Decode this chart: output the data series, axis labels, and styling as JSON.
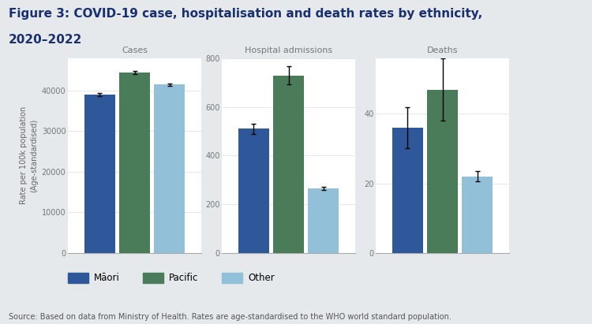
{
  "title_line1": "Figure 3: COVID-19 case, hospitalisation and death rates by ethnicity,",
  "title_line2": "2020–2022",
  "title_fontsize": 11,
  "source_text": "Source: Based on data from Ministry of Health. Rates are age-standardised to the WHO world standard population.",
  "source_fontsize": 7,
  "ylabel": "Rate per 100k population\n(Age-standardised)",
  "ylabel_fontsize": 7,
  "groups": [
    "Cases",
    "Hospital admissions",
    "Deaths"
  ],
  "ethnicities": [
    "Māori",
    "Pacific",
    "Other"
  ],
  "values": {
    "Cases": [
      39000,
      44500,
      41500
    ],
    "Hospital admissions": [
      510,
      730,
      265
    ],
    "Deaths": [
      36,
      47,
      22
    ]
  },
  "errors": {
    "Cases": [
      400,
      300,
      250
    ],
    "Hospital admissions": [
      22,
      38,
      7
    ],
    "Deaths": [
      6,
      9,
      1.5
    ]
  },
  "bar_colors": [
    "#2e5899",
    "#4a7c59",
    "#93c0d9"
  ],
  "background_color": "#e5e9ec",
  "plot_bg_color": "#ffffff",
  "title_color": "#1a2f6e",
  "tick_label_color": "#777777",
  "subtitle_color": "#777777",
  "source_color": "#555555",
  "ylims": {
    "Cases": [
      0,
      48000
    ],
    "Hospital admissions": [
      0,
      800
    ],
    "Deaths": [
      0,
      56
    ]
  },
  "yticks": {
    "Cases": [
      0,
      10000,
      20000,
      30000,
      40000
    ],
    "Hospital admissions": [
      0,
      200,
      400,
      600,
      800
    ],
    "Deaths": [
      0,
      20,
      40
    ]
  },
  "ytick_labels": {
    "Cases": [
      "0",
      "10000",
      "20000",
      "30000",
      "40000"
    ],
    "Hospital admissions": [
      "0",
      "200",
      "400",
      "600",
      "800"
    ],
    "Deaths": [
      "0",
      "20",
      "40"
    ]
  }
}
